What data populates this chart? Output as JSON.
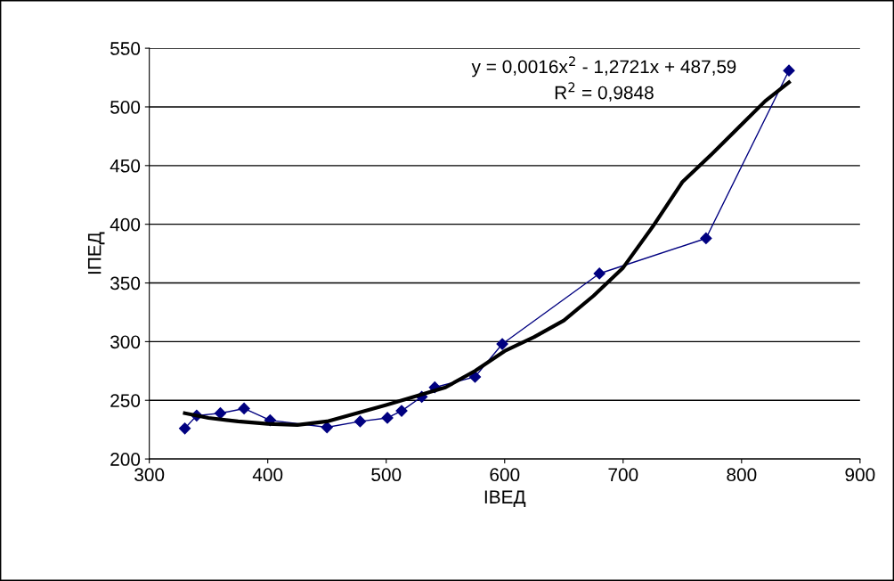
{
  "chart_data": {
    "type": "line",
    "xlabel": "IВЕД",
    "ylabel": "IПЕД",
    "xlim": [
      300,
      900
    ],
    "xticks": [
      300,
      400,
      500,
      600,
      700,
      800,
      900
    ],
    "ylim": [
      200,
      550
    ],
    "yticks": [
      200,
      250,
      300,
      350,
      400,
      450,
      500,
      550
    ],
    "grid": "y",
    "legend": false,
    "series": [
      {
        "color": "#000080",
        "marker": "diamond",
        "x": [
          330,
          340,
          360,
          380,
          402,
          450,
          478,
          501,
          513,
          530,
          541,
          575,
          598,
          680,
          770,
          840
        ],
        "values": [
          226,
          237,
          239,
          243,
          233,
          227,
          232,
          235,
          241,
          253,
          261,
          270,
          298,
          358,
          388,
          531
        ]
      },
      {
        "color": "#000000",
        "marker": "none",
        "x": [
          330,
          350,
          375,
          400,
          425,
          450,
          500,
          550,
          575,
          600,
          625,
          650,
          675,
          700,
          725,
          750,
          775,
          800,
          820,
          840
        ],
        "values": [
          239,
          235,
          232,
          230,
          229,
          232,
          246,
          261,
          275,
          292,
          304,
          318,
          339,
          363,
          398,
          436,
          460,
          485,
          505,
          521
        ]
      }
    ],
    "annotations": [
      "y = 0,0016x$^{2}$ - 1,2721x + 487,59",
      "R$^{2}$ = 0,9848"
    ]
  }
}
